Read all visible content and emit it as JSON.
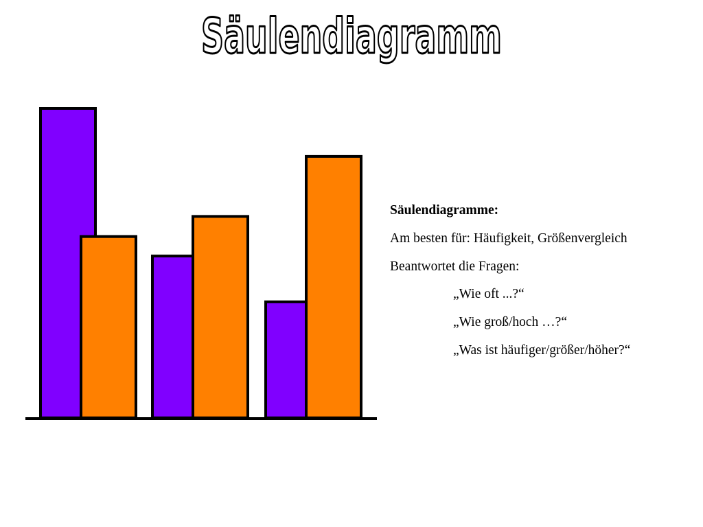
{
  "title": "Säulendiagramm",
  "colors": {
    "series_a": "#8000ff",
    "series_b": "#ff8000",
    "outline": "#000000",
    "title_fill": "#ffffff",
    "title_stroke": "#000000"
  },
  "chart_data": {
    "type": "bar",
    "title": "",
    "xlabel": "",
    "ylabel": "",
    "categories": [
      "",
      "",
      ""
    ],
    "series": [
      {
        "values": [
          100,
          52.3,
          37.5
        ]
      },
      {
        "values": [
          58.6,
          65.1,
          84.5
        ]
      }
    ],
    "ylim": [
      0,
      100
    ],
    "grid": false,
    "legend": "none"
  },
  "description": {
    "heading": "Säulendiagramme:",
    "lines": [
      "Am besten für: Häufigkeit, Größenvergleich",
      "Beantwortet die Fragen:"
    ],
    "questions": [
      "„Wie oft ...?“",
      "„Wie groß/hoch …?“",
      "„Was ist häufiger/größer/höher?“"
    ]
  }
}
